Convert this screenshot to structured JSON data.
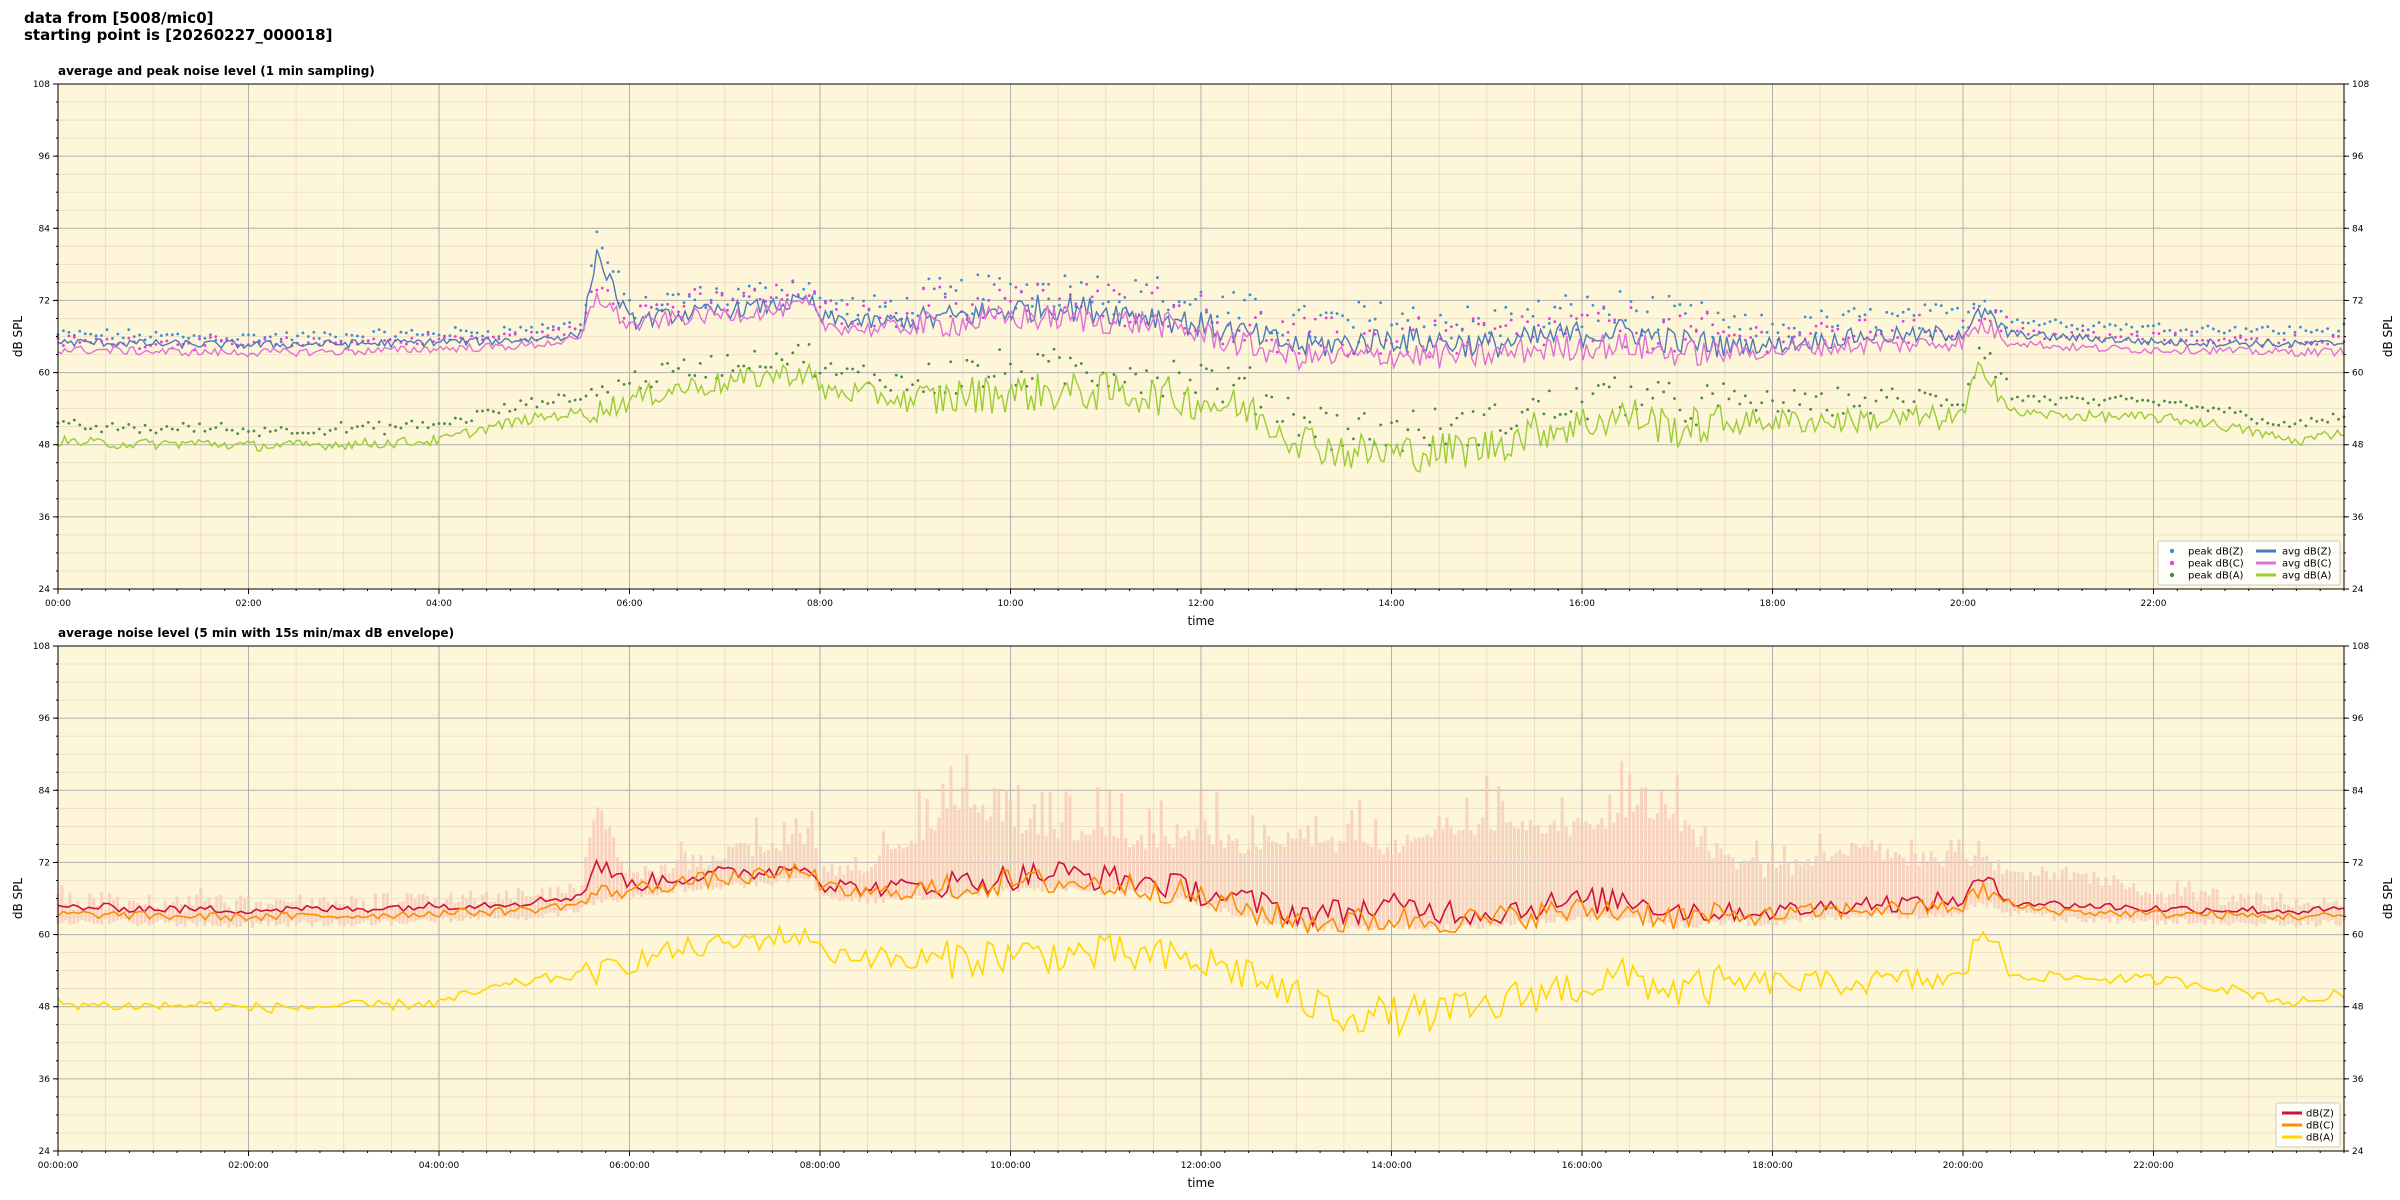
{
  "header": {
    "line1": "data from [5008/mic0]",
    "line2": "starting point is [20260227_000018]"
  },
  "colors": {
    "plot_bg": "#fdf6d8",
    "grid_major": "#b0b0b0",
    "grid_minor": "#e8dcc0",
    "peak_z": "#3a8fd6",
    "peak_c": "#e040e0",
    "peak_a": "#4a8a4a",
    "avg_z": "#4a7ab8",
    "avg_c": "#e070d8",
    "avg_a": "#9acd32",
    "env_fill": "#f5c8b8",
    "dbz": "#d0103a",
    "dbc": "#ff8c00",
    "dba": "#ffd700"
  },
  "chart_data": [
    {
      "type": "line",
      "title": "average and peak noise level (1 min sampling)",
      "xlabel": "time",
      "ylabel": "dB SPL",
      "ylim": [
        24,
        108
      ],
      "yticks": [
        24,
        36,
        48,
        60,
        72,
        84,
        96,
        108
      ],
      "xlim_hours": [
        0,
        24
      ],
      "xticks": [
        "00:00",
        "02:00",
        "04:00",
        "06:00",
        "08:00",
        "10:00",
        "12:00",
        "14:00",
        "16:00",
        "18:00",
        "20:00",
        "22:00"
      ],
      "grid": true,
      "legend_position": "bottom-right",
      "x": [
        0,
        0.5,
        1,
        1.5,
        2,
        2.5,
        3,
        3.5,
        4,
        4.5,
        5,
        5.5,
        5.65,
        6,
        6.5,
        7,
        7.5,
        7.9,
        8,
        8.5,
        9,
        9.5,
        10,
        10.5,
        11,
        11.5,
        12,
        12.5,
        13,
        13.5,
        14,
        14.5,
        15,
        15.5,
        16,
        16.5,
        17,
        17.5,
        18,
        18.5,
        19,
        19.5,
        20,
        20.2,
        20.5,
        21,
        21.5,
        22,
        22.5,
        23,
        23.5,
        24
      ],
      "series": [
        {
          "name": "avg dB(Z)",
          "kind": "line",
          "values": [
            65,
            65,
            64.8,
            64.7,
            64.6,
            64.7,
            64.8,
            64.9,
            65.1,
            65.2,
            65.6,
            66.3,
            80,
            68.5,
            69.6,
            70.4,
            71.1,
            72,
            69,
            68.4,
            68.6,
            69.4,
            70.4,
            71,
            70.2,
            69.5,
            67.9,
            66.3,
            64.4,
            64.8,
            65.7,
            65.2,
            64.5,
            65.6,
            66.5,
            66.9,
            65.1,
            64.6,
            64.6,
            65.3,
            66.2,
            66.1,
            66.8,
            70,
            66.4,
            65.9,
            65.6,
            65.1,
            65,
            64.9,
            64.7,
            64.9
          ]
        },
        {
          "name": "avg dB(C)",
          "kind": "line",
          "values": [
            63.8,
            63.7,
            63.5,
            63.4,
            63.3,
            63.4,
            63.5,
            63.7,
            64,
            64.2,
            64.6,
            65.6,
            73,
            67.7,
            69.1,
            69.7,
            70.2,
            71.4,
            68,
            67.2,
            67.7,
            68.3,
            69.1,
            69.1,
            68.6,
            68.3,
            66.5,
            64.4,
            62.7,
            62.5,
            63,
            62.8,
            62.8,
            63.9,
            64.3,
            64.5,
            63.2,
            63.4,
            63.6,
            64.2,
            64.6,
            64.7,
            65.2,
            68,
            65.2,
            64.3,
            64,
            63.8,
            63.8,
            63.5,
            63.4,
            63.5
          ]
        },
        {
          "name": "avg dB(A)",
          "kind": "line",
          "values": [
            48.6,
            48.2,
            48.1,
            48.3,
            47.8,
            47.9,
            48.1,
            48.3,
            48.7,
            50.8,
            52.4,
            53.4,
            53.6,
            55.4,
            57.4,
            58.3,
            59.6,
            60,
            57,
            56.5,
            55.1,
            56.2,
            56.6,
            56.7,
            56.8,
            56.2,
            55.3,
            53.7,
            49.2,
            46.9,
            46.6,
            46.9,
            47.6,
            50.3,
            51.5,
            53,
            50.6,
            51.7,
            52,
            51.9,
            52.1,
            52.4,
            52.5,
            62,
            53.4,
            52.9,
            52.7,
            52.5,
            51.8,
            50.3,
            48.5,
            50.3
          ]
        },
        {
          "name": "peak dB(Z)",
          "kind": "scatter",
          "values": [
            66,
            66,
            65.8,
            65.7,
            65.6,
            65.7,
            65.8,
            66,
            66.3,
            66.5,
            67,
            67.8,
            82,
            70,
            71.2,
            72,
            72.7,
            74,
            70.5,
            70,
            70.3,
            71.2,
            72.2,
            72.8,
            72,
            71.3,
            69.8,
            68.2,
            66.5,
            66.8,
            67.7,
            67.2,
            66.6,
            67.6,
            68.5,
            68.9,
            67.1,
            66.6,
            66.6,
            67.3,
            68.2,
            68.1,
            68.8,
            72,
            68.4,
            67.9,
            67.6,
            67.1,
            67,
            66.9,
            66.7,
            66.9
          ]
        },
        {
          "name": "peak dB(C)",
          "kind": "scatter",
          "values": [
            65,
            64.9,
            64.7,
            64.6,
            64.5,
            64.6,
            64.7,
            64.9,
            65.2,
            65.4,
            65.9,
            66.9,
            75,
            69.2,
            70.6,
            71.2,
            71.8,
            73,
            69.5,
            68.7,
            69.2,
            69.8,
            70.6,
            70.6,
            70.1,
            69.8,
            68,
            66,
            64.3,
            64.1,
            64.6,
            64.4,
            64.4,
            65.5,
            65.9,
            66.1,
            64.8,
            65,
            65.2,
            65.8,
            66.2,
            66.3,
            66.8,
            69.6,
            66.8,
            65.9,
            65.6,
            65.4,
            65.4,
            65.1,
            65,
            65.1
          ]
        },
        {
          "name": "peak dB(A)",
          "kind": "scatter",
          "values": [
            51,
            50.5,
            50.4,
            50.6,
            50.1,
            50.2,
            50.4,
            50.6,
            51,
            53,
            54.6,
            55.6,
            55.8,
            57.6,
            59.6,
            60.5,
            61.8,
            62.2,
            59.2,
            58.7,
            57.3,
            58.4,
            58.8,
            58.9,
            59,
            58.4,
            57.5,
            55.9,
            51.4,
            49.1,
            48.8,
            49.1,
            49.8,
            52.5,
            53.7,
            55.2,
            52.8,
            53.9,
            54.2,
            54.1,
            54.3,
            54.6,
            54.7,
            64,
            55.6,
            55.1,
            54.9,
            54.7,
            54,
            52.5,
            50.7,
            52.5
          ]
        }
      ]
    },
    {
      "type": "area",
      "title": "average noise level (5 min with 15s min/max dB envelope)",
      "xlabel": "time",
      "ylabel": "dB SPL",
      "ylim": [
        24,
        108
      ],
      "yticks": [
        24,
        36,
        48,
        60,
        72,
        84,
        96,
        108
      ],
      "xlim_hours": [
        0,
        24
      ],
      "xticks": [
        "00:00:00",
        "02:00:00",
        "04:00:00",
        "06:00:00",
        "08:00:00",
        "10:00:00",
        "12:00:00",
        "14:00:00",
        "16:00:00",
        "18:00:00",
        "20:00:00",
        "22:00:00"
      ],
      "grid": true,
      "legend_position": "bottom-right",
      "x": [
        0,
        0.5,
        1,
        1.5,
        2,
        2.5,
        3,
        3.5,
        4,
        4.5,
        5,
        5.5,
        5.65,
        6,
        6.5,
        7,
        7.5,
        7.9,
        8,
        8.5,
        9,
        9.5,
        10,
        10.5,
        11,
        11.5,
        12,
        12.5,
        13,
        13.5,
        14,
        14.5,
        15,
        15.5,
        16,
        16.5,
        17,
        17.5,
        18,
        18.5,
        19,
        19.5,
        20,
        20.2,
        20.5,
        21,
        21.5,
        22,
        22.5,
        23,
        23.5,
        24
      ],
      "envelope": {
        "min": [
          62.8,
          62.7,
          62.5,
          62.4,
          62.3,
          62.4,
          62.5,
          62.7,
          63,
          63.2,
          63.6,
          64.6,
          66,
          66.7,
          68.1,
          68.7,
          69.2,
          70.4,
          67,
          66.2,
          66.7,
          67.3,
          68.1,
          68.1,
          67.6,
          67.3,
          65.5,
          63.4,
          61.7,
          61.5,
          62,
          61.8,
          61.8,
          62.9,
          63.3,
          63.5,
          62.2,
          62.4,
          62.6,
          63.2,
          63.6,
          63.7,
          64.2,
          66,
          64.2,
          63.3,
          63,
          62.8,
          62.8,
          62.5,
          62.4,
          62.5
        ],
        "max": [
          67,
          67,
          66.8,
          66.7,
          66.6,
          66.7,
          66.8,
          67,
          67.3,
          67.5,
          68,
          69,
          84,
          71,
          72.5,
          75,
          76,
          78,
          72,
          73,
          76,
          84,
          80,
          79,
          78,
          77,
          78,
          76,
          78,
          76,
          76,
          78,
          80,
          80,
          79,
          82,
          80,
          74,
          72,
          74,
          76,
          74,
          74,
          74,
          72,
          72,
          70,
          68,
          68,
          67.5,
          67,
          67
        ],
        "name": "15s min/max envelope"
      },
      "series": [
        {
          "name": "dB(Z)",
          "values": [
            64.6,
            64.5,
            64.3,
            64.2,
            64.1,
            64.2,
            64.3,
            64.5,
            64.8,
            65,
            65.5,
            66.5,
            72,
            68.3,
            69.5,
            70.1,
            70.6,
            71.8,
            68.4,
            67.6,
            68.1,
            68.7,
            69.5,
            70.3,
            69.4,
            68.7,
            67.1,
            65.5,
            63.6,
            63.8,
            64.6,
            64.1,
            63.6,
            64.7,
            65.5,
            65.9,
            64.2,
            63.8,
            63.8,
            64.5,
            65.3,
            65.2,
            65.9,
            69.4,
            65.5,
            65,
            64.7,
            64.3,
            64.2,
            64.1,
            63.9,
            64.1
          ]
        },
        {
          "name": "dB(C)",
          "values": [
            63.4,
            63.3,
            63.1,
            63,
            62.9,
            63,
            63.1,
            63.3,
            63.6,
            63.8,
            64.2,
            65.2,
            67,
            67.3,
            68.7,
            69.3,
            69.8,
            71,
            67.6,
            66.8,
            67.3,
            67.9,
            68.7,
            68.7,
            68.2,
            67.9,
            66.1,
            64,
            62.3,
            62.1,
            62.6,
            62.4,
            62.4,
            63.5,
            63.9,
            64.1,
            62.8,
            63,
            63.2,
            63.8,
            64.2,
            64.3,
            64.8,
            67.6,
            64.8,
            63.9,
            63.6,
            63.4,
            63.4,
            63.1,
            63,
            63.1
          ]
        },
        {
          "name": "dB(A)",
          "values": [
            48.6,
            48.2,
            48.1,
            48.3,
            47.8,
            47.9,
            48.1,
            48.3,
            48.7,
            50.8,
            52.4,
            53.4,
            53.6,
            55.4,
            57.4,
            58.3,
            59.6,
            60,
            57,
            56.5,
            55.1,
            56.2,
            56.6,
            56.7,
            56.8,
            56.2,
            55.3,
            53.7,
            49.2,
            46.9,
            46.6,
            46.9,
            47.6,
            50.3,
            51.5,
            53,
            50.6,
            51.7,
            52,
            51.9,
            52.1,
            52.4,
            52.5,
            62,
            53.4,
            52.9,
            52.7,
            52.5,
            51.8,
            50.3,
            48.5,
            50.3
          ]
        }
      ]
    }
  ]
}
